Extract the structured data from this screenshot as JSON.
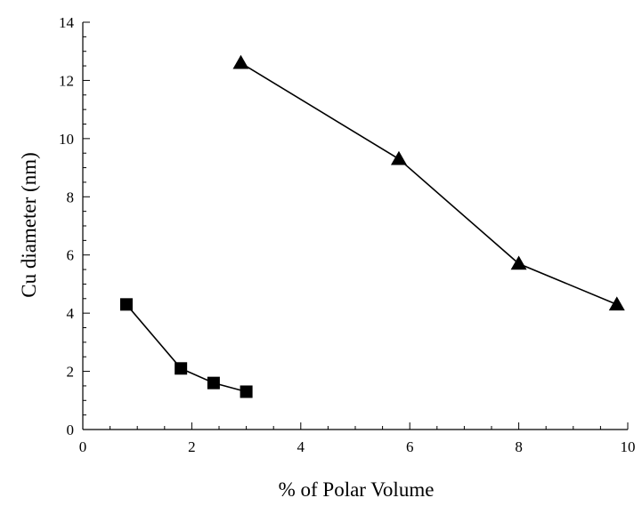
{
  "chart_data": {
    "type": "line",
    "title": "",
    "xlabel": "% of Polar Volume",
    "ylabel": "Cu diameter (nm)",
    "xlim": [
      0,
      10
    ],
    "ylim": [
      0,
      14
    ],
    "xticks": [
      0,
      2,
      4,
      6,
      8,
      10
    ],
    "yticks": [
      0,
      2,
      4,
      6,
      8,
      10,
      12,
      14
    ],
    "grid": false,
    "series": [
      {
        "marker": "square",
        "color": "#000000",
        "x": [
          0.8,
          1.8,
          2.4,
          3.0
        ],
        "y": [
          4.3,
          2.1,
          1.6,
          1.3
        ]
      },
      {
        "marker": "triangle",
        "color": "#000000",
        "x": [
          2.9,
          5.8,
          8.0,
          9.8
        ],
        "y": [
          12.6,
          9.3,
          5.7,
          4.3
        ]
      }
    ]
  }
}
